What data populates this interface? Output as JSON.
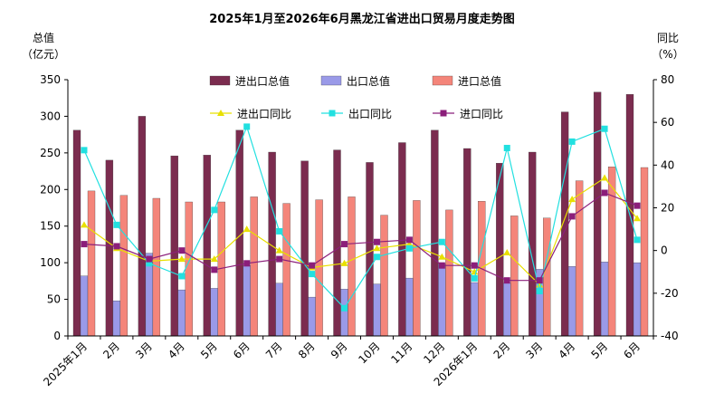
{
  "chart_data": {
    "type": "bar",
    "title": "2025年1月至2026年6月黑龙江省进出口贸易月度走势图",
    "left_axis_label_line1": "总值",
    "left_axis_label_line2": "（亿元）",
    "right_axis_label_line1": "同比",
    "right_axis_label_line2": "（%）",
    "categories": [
      "2025年1月",
      "2月",
      "3月",
      "4月",
      "5月",
      "6月",
      "7月",
      "8月",
      "9月",
      "10月",
      "11月",
      "12月",
      "2026年1月",
      "2月",
      "3月",
      "4月",
      "5月",
      "6月"
    ],
    "ylim_left": [
      0,
      350
    ],
    "yticks_left": [
      0,
      50,
      100,
      150,
      200,
      250,
      300,
      350
    ],
    "ylim_right": [
      -40,
      80
    ],
    "yticks_right": [
      -40,
      -20,
      0,
      20,
      40,
      60,
      80
    ],
    "bar_series": [
      {
        "name": "进出口总值",
        "color": "#7b2c4f",
        "values": [
          281,
          240,
          300,
          246,
          247,
          281,
          251,
          239,
          254,
          237,
          264,
          281,
          256,
          236,
          251,
          306,
          333,
          330
        ]
      },
      {
        "name": "出口总值",
        "color": "#9a9ae8",
        "values": [
          82,
          48,
          113,
          63,
          65,
          96,
          72,
          53,
          64,
          71,
          79,
          98,
          73,
          72,
          91,
          95,
          101,
          100
        ]
      },
      {
        "name": "进口总值",
        "color": "#f4857a",
        "values": [
          198,
          192,
          188,
          183,
          183,
          190,
          181,
          186,
          190,
          165,
          185,
          172,
          184,
          164,
          161,
          212,
          231,
          230
        ]
      }
    ],
    "line_series": [
      {
        "name": "进出口同比",
        "color": "#e8e000",
        "marker": "triangle",
        "values": [
          12,
          1,
          -5,
          -4,
          -4,
          10,
          0,
          -8,
          -6,
          1,
          3,
          -3,
          -10,
          -1,
          -16,
          24,
          34,
          15
        ]
      },
      {
        "name": "出口同比",
        "color": "#22e0e0",
        "marker": "square",
        "values": [
          47,
          12,
          -6,
          -12,
          19,
          58,
          9,
          -11,
          -27,
          -3,
          1,
          4,
          -13,
          48,
          -19,
          51,
          57,
          5
        ]
      },
      {
        "name": "进口同比",
        "color": "#8b1e7a",
        "marker": "square",
        "values": [
          3,
          2,
          -4,
          0,
          -9,
          -6,
          -4,
          -7,
          3,
          4,
          5,
          -7,
          -7,
          -14,
          -14,
          16,
          27,
          21
        ]
      }
    ],
    "legend_placement": "top-center"
  }
}
